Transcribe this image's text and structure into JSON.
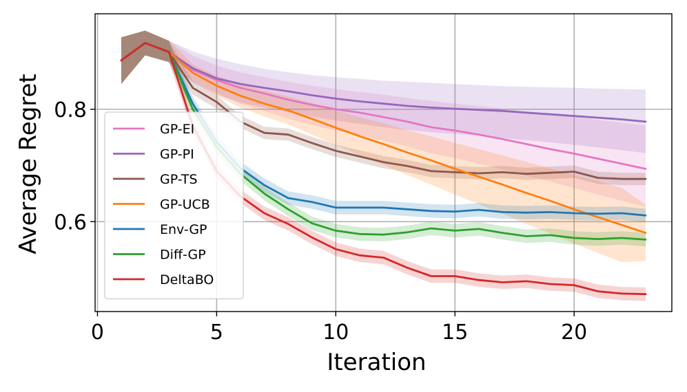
{
  "chart_data": {
    "type": "line",
    "title": "",
    "xlabel": "Iteration",
    "ylabel": "Average Regret",
    "xlim": [
      -0.1,
      24.1
    ],
    "ylim": [
      0.44,
      0.97
    ],
    "xticks": [
      0,
      5,
      10,
      15,
      20
    ],
    "yticks": [
      0.6,
      0.8
    ],
    "xtick_labels": [
      "0",
      "5",
      "10",
      "15",
      "20"
    ],
    "ytick_labels": [
      "0.6",
      "0.8"
    ],
    "grid": true,
    "legend_position": "lower-left",
    "series": [
      {
        "name": "GP-EI",
        "color": "#e377c2",
        "x": [
          1,
          2,
          3,
          4,
          5,
          6,
          7,
          8,
          9,
          10,
          11,
          12,
          13,
          14,
          15,
          16,
          17,
          18,
          19,
          20,
          21,
          22,
          23
        ],
        "values": [
          0.887,
          0.918,
          0.902,
          0.87,
          0.852,
          0.838,
          0.828,
          0.817,
          0.808,
          0.8,
          0.794,
          0.786,
          0.778,
          0.768,
          0.762,
          0.755,
          0.747,
          0.738,
          0.729,
          0.721,
          0.712,
          0.703,
          0.694
        ],
        "upper": [
          0.928,
          0.94,
          0.922,
          0.895,
          0.878,
          0.866,
          0.857,
          0.849,
          0.842,
          0.836,
          0.831,
          0.826,
          0.82,
          0.815,
          0.81,
          0.806,
          0.801,
          0.796,
          0.791,
          0.786,
          0.781,
          0.776,
          0.771
        ],
        "lower": [
          0.845,
          0.896,
          0.884,
          0.848,
          0.828,
          0.81,
          0.797,
          0.783,
          0.772,
          0.762,
          0.754,
          0.744,
          0.734,
          0.722,
          0.713,
          0.703,
          0.693,
          0.682,
          0.671,
          0.66,
          0.648,
          0.637,
          0.626
        ]
      },
      {
        "name": "GP-PI",
        "color": "#9467bd",
        "x": [
          1,
          2,
          3,
          4,
          5,
          6,
          7,
          8,
          9,
          10,
          11,
          12,
          13,
          14,
          15,
          16,
          17,
          18,
          19,
          20,
          21,
          22,
          23
        ],
        "values": [
          0.887,
          0.918,
          0.902,
          0.873,
          0.855,
          0.845,
          0.838,
          0.832,
          0.825,
          0.819,
          0.814,
          0.81,
          0.806,
          0.803,
          0.801,
          0.799,
          0.797,
          0.794,
          0.791,
          0.788,
          0.785,
          0.782,
          0.778
        ],
        "upper": [
          0.928,
          0.94,
          0.922,
          0.903,
          0.89,
          0.88,
          0.872,
          0.866,
          0.861,
          0.857,
          0.854,
          0.851,
          0.849,
          0.847,
          0.845,
          0.843,
          0.841,
          0.84,
          0.839,
          0.838,
          0.837,
          0.836,
          0.835
        ],
        "lower": [
          0.845,
          0.896,
          0.884,
          0.848,
          0.826,
          0.812,
          0.803,
          0.795,
          0.787,
          0.78,
          0.774,
          0.768,
          0.763,
          0.759,
          0.756,
          0.753,
          0.749,
          0.745,
          0.741,
          0.737,
          0.732,
          0.727,
          0.722
        ]
      },
      {
        "name": "GP-TS",
        "color": "#8c564b",
        "x": [
          1,
          2,
          3,
          4,
          5,
          6,
          7,
          8,
          9,
          10,
          11,
          12,
          13,
          14,
          15,
          16,
          17,
          18,
          19,
          20,
          21,
          22,
          23
        ],
        "values": [
          0.887,
          0.918,
          0.902,
          0.838,
          0.813,
          0.778,
          0.758,
          0.755,
          0.74,
          0.726,
          0.716,
          0.706,
          0.699,
          0.69,
          0.688,
          0.686,
          0.688,
          0.685,
          0.687,
          0.689,
          0.678,
          0.676,
          0.676
        ],
        "upper": [
          0.928,
          0.94,
          0.922,
          0.85,
          0.825,
          0.789,
          0.769,
          0.766,
          0.751,
          0.737,
          0.727,
          0.717,
          0.71,
          0.701,
          0.699,
          0.697,
          0.699,
          0.696,
          0.698,
          0.7,
          0.689,
          0.687,
          0.687
        ],
        "lower": [
          0.845,
          0.896,
          0.884,
          0.826,
          0.801,
          0.767,
          0.747,
          0.744,
          0.729,
          0.715,
          0.705,
          0.695,
          0.688,
          0.679,
          0.677,
          0.675,
          0.677,
          0.674,
          0.676,
          0.678,
          0.667,
          0.665,
          0.665
        ]
      },
      {
        "name": "GP-UCB",
        "color": "#ff7f0e",
        "x": [
          1,
          2,
          3,
          4,
          5,
          6,
          7,
          8,
          9,
          10,
          11,
          12,
          13,
          14,
          15,
          16,
          17,
          18,
          19,
          20,
          21,
          22,
          23
        ],
        "values": [
          0.887,
          0.918,
          0.902,
          0.865,
          0.842,
          0.824,
          0.81,
          0.798,
          0.783,
          0.767,
          0.752,
          0.738,
          0.723,
          0.709,
          0.694,
          0.68,
          0.666,
          0.651,
          0.637,
          0.622,
          0.608,
          0.594,
          0.58
        ],
        "upper": [
          0.928,
          0.94,
          0.922,
          0.88,
          0.86,
          0.845,
          0.833,
          0.823,
          0.811,
          0.798,
          0.786,
          0.775,
          0.763,
          0.752,
          0.74,
          0.729,
          0.718,
          0.706,
          0.695,
          0.683,
          0.672,
          0.66,
          0.63
        ],
        "lower": [
          0.845,
          0.896,
          0.884,
          0.85,
          0.824,
          0.803,
          0.787,
          0.773,
          0.755,
          0.736,
          0.718,
          0.701,
          0.683,
          0.666,
          0.648,
          0.631,
          0.614,
          0.596,
          0.579,
          0.561,
          0.544,
          0.528,
          0.53
        ]
      },
      {
        "name": "Env-GP",
        "color": "#1f77b4",
        "x": [
          1,
          2,
          3,
          4,
          5,
          6,
          7,
          8,
          9,
          10,
          11,
          12,
          13,
          14,
          15,
          16,
          17,
          18,
          19,
          20,
          21,
          22,
          23
        ],
        "values": [
          0.887,
          0.918,
          0.902,
          0.81,
          0.742,
          0.695,
          0.665,
          0.642,
          0.635,
          0.625,
          0.625,
          0.625,
          0.622,
          0.619,
          0.618,
          0.621,
          0.617,
          0.616,
          0.617,
          0.615,
          0.614,
          0.615,
          0.611
        ],
        "upper": [
          0.928,
          0.94,
          0.922,
          0.822,
          0.754,
          0.707,
          0.677,
          0.654,
          0.647,
          0.637,
          0.637,
          0.637,
          0.634,
          0.631,
          0.63,
          0.633,
          0.629,
          0.628,
          0.629,
          0.627,
          0.626,
          0.627,
          0.623
        ],
        "lower": [
          0.845,
          0.896,
          0.884,
          0.798,
          0.73,
          0.683,
          0.653,
          0.63,
          0.623,
          0.613,
          0.613,
          0.613,
          0.61,
          0.607,
          0.606,
          0.609,
          0.605,
          0.604,
          0.605,
          0.603,
          0.602,
          0.603,
          0.599
        ]
      },
      {
        "name": "Diff-GP",
        "color": "#2ca02c",
        "x": [
          1,
          2,
          3,
          4,
          5,
          6,
          7,
          8,
          9,
          10,
          11,
          12,
          13,
          14,
          15,
          16,
          17,
          18,
          19,
          20,
          21,
          22,
          23
        ],
        "values": [
          0.887,
          0.918,
          0.902,
          0.8,
          0.733,
          0.685,
          0.65,
          0.622,
          0.597,
          0.584,
          0.578,
          0.577,
          0.581,
          0.588,
          0.584,
          0.587,
          0.58,
          0.574,
          0.576,
          0.571,
          0.569,
          0.571,
          0.568
        ],
        "upper": [
          0.928,
          0.94,
          0.922,
          0.812,
          0.745,
          0.697,
          0.662,
          0.634,
          0.609,
          0.596,
          0.59,
          0.589,
          0.593,
          0.6,
          0.596,
          0.599,
          0.592,
          0.586,
          0.588,
          0.583,
          0.581,
          0.583,
          0.58
        ],
        "lower": [
          0.845,
          0.896,
          0.884,
          0.788,
          0.721,
          0.673,
          0.638,
          0.61,
          0.585,
          0.572,
          0.566,
          0.565,
          0.569,
          0.576,
          0.572,
          0.575,
          0.568,
          0.562,
          0.564,
          0.559,
          0.557,
          0.559,
          0.556
        ]
      },
      {
        "name": "DeltaBO",
        "color": "#d62728",
        "x": [
          1,
          2,
          3,
          4,
          5,
          6,
          7,
          8,
          9,
          10,
          11,
          12,
          13,
          14,
          15,
          16,
          17,
          18,
          19,
          20,
          21,
          22,
          23
        ],
        "values": [
          0.887,
          0.918,
          0.902,
          0.77,
          0.69,
          0.645,
          0.615,
          0.596,
          0.572,
          0.551,
          0.54,
          0.536,
          0.518,
          0.503,
          0.503,
          0.496,
          0.492,
          0.494,
          0.489,
          0.487,
          0.476,
          0.472,
          0.471
        ],
        "upper": [
          0.928,
          0.94,
          0.922,
          0.782,
          0.702,
          0.657,
          0.627,
          0.608,
          0.584,
          0.563,
          0.552,
          0.548,
          0.53,
          0.515,
          0.515,
          0.508,
          0.504,
          0.506,
          0.501,
          0.499,
          0.488,
          0.484,
          0.483
        ],
        "lower": [
          0.845,
          0.896,
          0.884,
          0.758,
          0.678,
          0.633,
          0.603,
          0.584,
          0.56,
          0.539,
          0.528,
          0.524,
          0.506,
          0.491,
          0.491,
          0.484,
          0.48,
          0.482,
          0.477,
          0.475,
          0.464,
          0.46,
          0.459
        ]
      }
    ]
  }
}
